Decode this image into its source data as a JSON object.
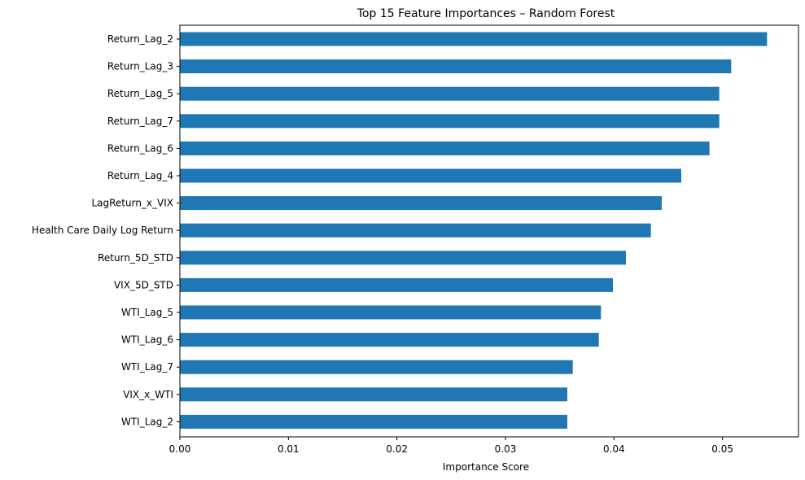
{
  "chart_data": {
    "type": "bar",
    "orientation": "horizontal",
    "title": "Top 15 Feature Importances – Random Forest",
    "xlabel": "Importance Score",
    "ylabel": "",
    "xlim": [
      0,
      0.057
    ],
    "x_ticks": [
      0.0,
      0.01,
      0.02,
      0.03,
      0.04,
      0.05
    ],
    "x_tick_labels": [
      "0.00",
      "0.01",
      "0.02",
      "0.03",
      "0.04",
      "0.05"
    ],
    "grid": false,
    "bar_color": "#1f77b4",
    "categories": [
      "Return_Lag_2",
      "Return_Lag_3",
      "Return_Lag_5",
      "Return_Lag_7",
      "Return_Lag_6",
      "Return_Lag_4",
      "LagReturn_x_VIX",
      "Health Care Daily Log Return",
      "Return_5D_STD",
      "VIX_5D_STD",
      "WTI_Lag_5",
      "WTI_Lag_6",
      "WTI_Lag_7",
      "VIX_x_WTI",
      "WTI_Lag_2"
    ],
    "values": [
      0.0541,
      0.0508,
      0.0497,
      0.0497,
      0.0488,
      0.0462,
      0.0444,
      0.0434,
      0.0411,
      0.0399,
      0.0388,
      0.0386,
      0.0362,
      0.0357,
      0.0357
    ]
  }
}
